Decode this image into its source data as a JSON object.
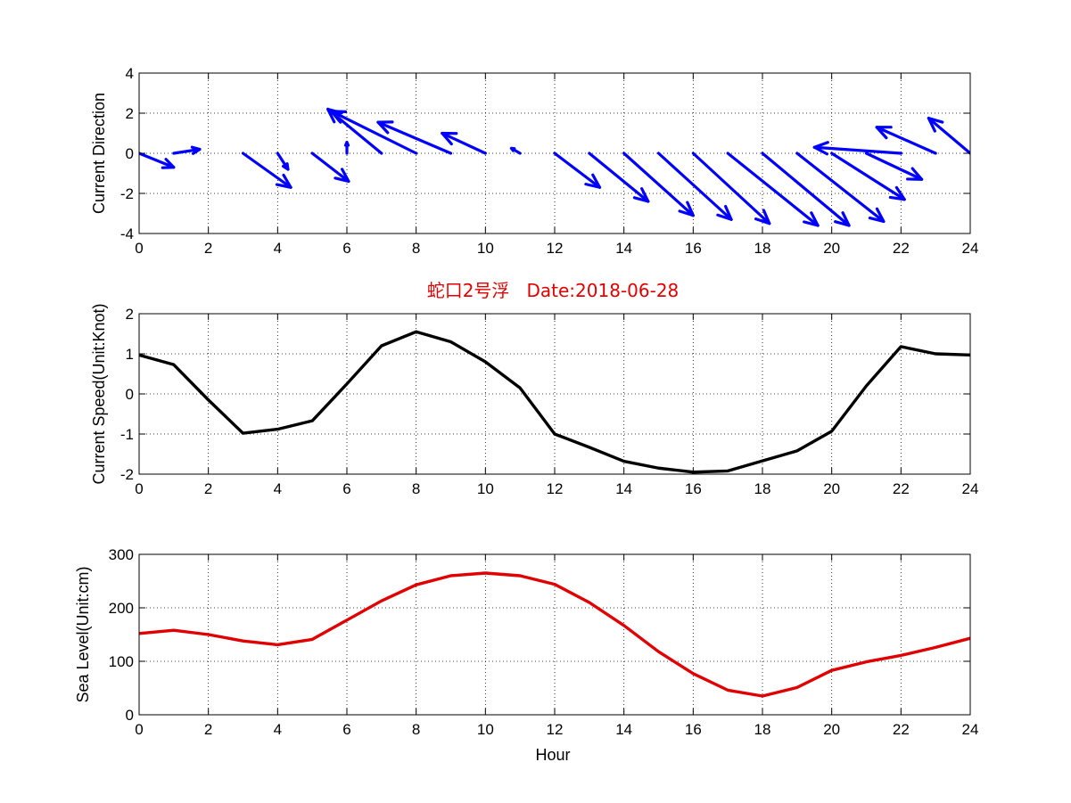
{
  "chart_data": [
    {
      "type": "quiver",
      "ylabel": "Current Direction",
      "xlim": [
        0,
        24
      ],
      "ylim": [
        -4,
        4
      ],
      "xticks": [
        0,
        2,
        4,
        6,
        8,
        10,
        12,
        14,
        16,
        18,
        20,
        22,
        24
      ],
      "yticks": [
        -4,
        -2,
        0,
        2,
        4
      ],
      "grid": true,
      "color": "#0000ff",
      "arrows": [
        {
          "x": 0,
          "u": 1.0,
          "v": -0.7
        },
        {
          "x": 1,
          "u": 0.75,
          "v": 0.2
        },
        {
          "x": 3,
          "u": 1.38,
          "v": -1.7
        },
        {
          "x": 4,
          "u": 0.3,
          "v": -0.8
        },
        {
          "x": 5,
          "u": 1.05,
          "v": -1.4
        },
        {
          "x": 6,
          "u": 0.0,
          "v": 0.55
        },
        {
          "x": 7,
          "u": -1.55,
          "v": 2.2
        },
        {
          "x": 8,
          "u": -2.45,
          "v": 2.1
        },
        {
          "x": 9,
          "u": -2.1,
          "v": 1.55
        },
        {
          "x": 10,
          "u": -1.25,
          "v": 1.0
        },
        {
          "x": 11,
          "u": -0.25,
          "v": 0.25
        },
        {
          "x": 12,
          "u": 1.3,
          "v": -1.7
        },
        {
          "x": 13,
          "u": 1.7,
          "v": -2.4
        },
        {
          "x": 14,
          "u": 2.0,
          "v": -3.1
        },
        {
          "x": 15,
          "u": 2.1,
          "v": -3.3
        },
        {
          "x": 16,
          "u": 2.2,
          "v": -3.5
        },
        {
          "x": 17,
          "u": 2.6,
          "v": -3.6
        },
        {
          "x": 18,
          "u": 2.5,
          "v": -3.6
        },
        {
          "x": 19,
          "u": 2.5,
          "v": -3.4
        },
        {
          "x": 20,
          "u": 2.1,
          "v": -2.3
        },
        {
          "x": 21,
          "u": 1.6,
          "v": -1.3
        },
        {
          "x": 22,
          "u": -2.5,
          "v": 0.3
        },
        {
          "x": 23,
          "u": -1.7,
          "v": 1.3
        },
        {
          "x": 24,
          "u": -1.2,
          "v": 1.75
        }
      ]
    },
    {
      "type": "line",
      "title": "蛇口2号浮   Date:2018-06-28",
      "ylabel": "Current Speed(Unit:Knot)",
      "xlim": [
        0,
        24
      ],
      "ylim": [
        -2,
        2
      ],
      "xticks": [
        0,
        2,
        4,
        6,
        8,
        10,
        12,
        14,
        16,
        18,
        20,
        22,
        24
      ],
      "yticks": [
        -2,
        -1,
        0,
        1,
        2
      ],
      "grid": true,
      "color": "#000000",
      "x": [
        0,
        1,
        2,
        3,
        4,
        5,
        6,
        7,
        8,
        9,
        10,
        11,
        12,
        13,
        14,
        15,
        16,
        17,
        18,
        19,
        20,
        21,
        22,
        23,
        24
      ],
      "y": [
        0.97,
        0.73,
        -0.15,
        -0.98,
        -0.88,
        -0.67,
        0.25,
        1.2,
        1.55,
        1.3,
        0.8,
        0.15,
        -1.0,
        -1.33,
        -1.68,
        -1.85,
        -1.95,
        -1.92,
        -1.67,
        -1.42,
        -0.93,
        0.2,
        1.18,
        1.0,
        0.97
      ]
    },
    {
      "type": "line",
      "ylabel": "Sea Level(Unit:cm)",
      "xlabel": "Hour",
      "xlim": [
        0,
        24
      ],
      "ylim": [
        0,
        300
      ],
      "xticks": [
        0,
        2,
        4,
        6,
        8,
        10,
        12,
        14,
        16,
        18,
        20,
        22,
        24
      ],
      "yticks": [
        0,
        100,
        200,
        300
      ],
      "grid": true,
      "color": "#e00000",
      "x": [
        0,
        1,
        2,
        3,
        4,
        5,
        6,
        7,
        8,
        9,
        10,
        11,
        12,
        13,
        14,
        15,
        16,
        17,
        18,
        19,
        20,
        21,
        22,
        23,
        24
      ],
      "y": [
        152,
        158,
        150,
        138,
        131,
        141,
        177,
        213,
        243,
        260,
        265,
        260,
        244,
        210,
        167,
        118,
        77,
        46,
        35,
        51,
        83,
        99,
        111,
        126,
        143
      ]
    }
  ]
}
